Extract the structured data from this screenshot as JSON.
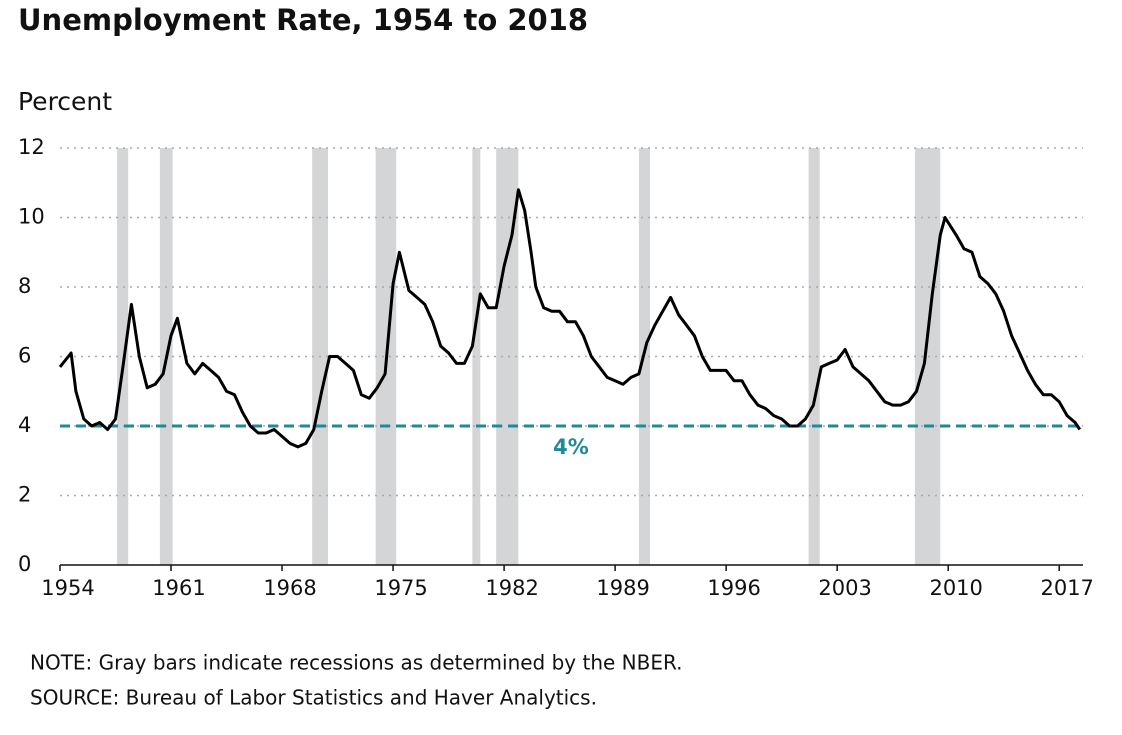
{
  "chart_data": {
    "type": "line",
    "title": "Unemployment Rate, 1954 to 2018",
    "y_label": "Percent",
    "note": "NOTE: Gray bars indicate recessions as determined by the NBER.",
    "source": "SOURCE: Bureau of Labor Statistics and Haver Analytics.",
    "x": [
      1954.0,
      1954.7,
      1955.0,
      1955.5,
      1956.0,
      1956.5,
      1957.0,
      1957.5,
      1958.0,
      1958.5,
      1959.0,
      1959.5,
      1960.0,
      1960.5,
      1961.0,
      1961.4,
      1962.0,
      1962.5,
      1963.0,
      1963.5,
      1964.0,
      1964.5,
      1965.0,
      1965.5,
      1966.0,
      1966.5,
      1967.0,
      1967.5,
      1968.0,
      1968.5,
      1969.0,
      1969.5,
      1970.0,
      1970.5,
      1971.0,
      1971.5,
      1972.0,
      1972.5,
      1973.0,
      1973.5,
      1974.0,
      1974.5,
      1975.0,
      1975.4,
      1976.0,
      1976.5,
      1977.0,
      1977.5,
      1978.0,
      1978.5,
      1979.0,
      1979.5,
      1980.0,
      1980.5,
      1981.0,
      1981.5,
      1982.0,
      1982.5,
      1982.9,
      1983.3,
      1983.7,
      1984.0,
      1984.5,
      1985.0,
      1985.5,
      1986.0,
      1986.5,
      1987.0,
      1987.5,
      1988.0,
      1988.5,
      1989.0,
      1989.5,
      1990.0,
      1990.5,
      1991.0,
      1991.5,
      1992.0,
      1992.5,
      1993.0,
      1993.5,
      1994.0,
      1994.5,
      1995.0,
      1995.5,
      1996.0,
      1996.5,
      1997.0,
      1997.5,
      1998.0,
      1998.5,
      1999.0,
      1999.5,
      2000.0,
      2000.5,
      2001.0,
      2001.5,
      2002.0,
      2002.5,
      2003.0,
      2003.5,
      2004.0,
      2004.5,
      2005.0,
      2005.5,
      2006.0,
      2006.5,
      2007.0,
      2007.5,
      2008.0,
      2008.5,
      2009.0,
      2009.5,
      2009.8,
      2010.5,
      2011.0,
      2011.5,
      2012.0,
      2012.5,
      2013.0,
      2013.5,
      2014.0,
      2014.5,
      2015.0,
      2015.5,
      2016.0,
      2016.5,
      2017.0,
      2017.5,
      2018.0,
      2018.3
    ],
    "series": [
      {
        "name": "Unemployment rate",
        "color": "#000000",
        "values": [
          5.7,
          6.1,
          5.0,
          4.2,
          4.0,
          4.1,
          3.9,
          4.2,
          5.8,
          7.5,
          6.0,
          5.1,
          5.2,
          5.5,
          6.6,
          7.1,
          5.8,
          5.5,
          5.8,
          5.6,
          5.4,
          5.0,
          4.9,
          4.4,
          4.0,
          3.8,
          3.8,
          3.9,
          3.7,
          3.5,
          3.4,
          3.5,
          3.9,
          5.0,
          6.0,
          6.0,
          5.8,
          5.6,
          4.9,
          4.8,
          5.1,
          5.5,
          8.1,
          9.0,
          7.9,
          7.7,
          7.5,
          7.0,
          6.3,
          6.1,
          5.8,
          5.8,
          6.3,
          7.8,
          7.4,
          7.4,
          8.6,
          9.5,
          10.8,
          10.2,
          9.0,
          8.0,
          7.4,
          7.3,
          7.3,
          7.0,
          7.0,
          6.6,
          6.0,
          5.7,
          5.4,
          5.3,
          5.2,
          5.4,
          5.5,
          6.4,
          6.9,
          7.3,
          7.7,
          7.2,
          6.9,
          6.6,
          6.0,
          5.6,
          5.6,
          5.6,
          5.3,
          5.3,
          4.9,
          4.6,
          4.5,
          4.3,
          4.2,
          4.0,
          4.0,
          4.2,
          4.6,
          5.7,
          5.8,
          5.9,
          6.2,
          5.7,
          5.5,
          5.3,
          5.0,
          4.7,
          4.6,
          4.6,
          4.7,
          5.0,
          5.8,
          7.8,
          9.5,
          10.0,
          9.5,
          9.1,
          9.0,
          8.3,
          8.1,
          7.8,
          7.3,
          6.6,
          6.1,
          5.6,
          5.2,
          4.9,
          4.9,
          4.7,
          4.3,
          4.1,
          3.9
        ]
      }
    ],
    "recessions": [
      [
        1957.6,
        1958.3
      ],
      [
        1960.3,
        1961.1
      ],
      [
        1969.9,
        1970.9
      ],
      [
        1973.9,
        1975.2
      ],
      [
        1980.0,
        1980.5
      ],
      [
        1981.5,
        1982.9
      ],
      [
        1990.5,
        1991.2
      ],
      [
        2001.2,
        2001.9
      ],
      [
        2007.9,
        2009.5
      ]
    ],
    "recession_color": "#d4d5d7",
    "reference": {
      "value": 4,
      "label": "4%",
      "color": "#1f8a98"
    },
    "xlim": [
      1954,
      2018.5
    ],
    "xticks": [
      1954,
      1961,
      1968,
      1975,
      1982,
      1989,
      1996,
      2003,
      2010,
      2017
    ],
    "ylim": [
      0,
      12
    ],
    "yticks": [
      0,
      2,
      4,
      6,
      8,
      10,
      12
    ],
    "grid": true
  }
}
